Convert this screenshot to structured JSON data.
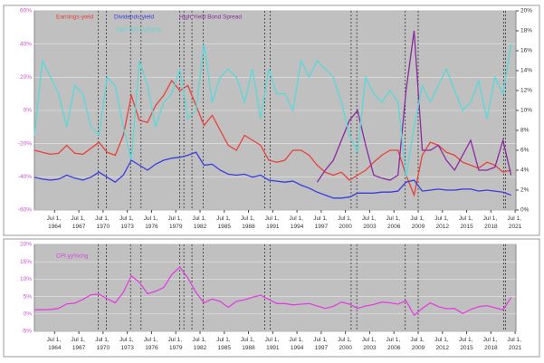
{
  "chart_data": [
    {
      "type": "line",
      "x": [
        1962,
        1963,
        1964,
        1965,
        1966,
        1967,
        1968,
        1969,
        1970,
        1971,
        1972,
        1973,
        1974,
        1975,
        1976,
        1977,
        1978,
        1979,
        1980,
        1981,
        1982,
        1983,
        1984,
        1985,
        1986,
        1987,
        1988,
        1989,
        1990,
        1991,
        1992,
        1993,
        1994,
        1995,
        1996,
        1997,
        1998,
        1999,
        2000,
        2001,
        2002,
        2003,
        2004,
        2005,
        2006,
        2007,
        2008,
        2009,
        2010,
        2011,
        2012,
        2013,
        2014,
        2015,
        2016,
        2017,
        2018,
        2019,
        2020,
        2021
      ],
      "series": [
        {
          "name": "Earnings-yield",
          "color": "#e8403a",
          "axis": "y2",
          "values": [
            6.0,
            5.8,
            5.6,
            5.7,
            6.5,
            5.7,
            5.6,
            6.2,
            6.8,
            5.8,
            5.5,
            7.5,
            11.5,
            9.0,
            8.8,
            10.5,
            11.5,
            13.0,
            12.0,
            12.5,
            10.5,
            8.5,
            9.5,
            8.0,
            6.5,
            6.0,
            7.5,
            7.0,
            6.5,
            5.0,
            4.8,
            5.0,
            6.0,
            6.0,
            5.5,
            4.5,
            3.8,
            3.5,
            3.8,
            3.0,
            3.5,
            4.0,
            4.8,
            5.5,
            6.0,
            6.0,
            3.5,
            1.5,
            5.5,
            6.8,
            6.5,
            5.8,
            5.5,
            4.8,
            4.5,
            4.2,
            4.8,
            4.5,
            3.8,
            4.0
          ]
        },
        {
          "name": "Dividends-yield",
          "color": "#3a3ae0",
          "axis": "y2",
          "values": [
            3.3,
            3.1,
            3.0,
            3.1,
            3.5,
            3.2,
            3.0,
            3.3,
            3.8,
            3.3,
            2.8,
            3.5,
            5.0,
            4.5,
            4.0,
            4.6,
            5.0,
            5.2,
            5.3,
            5.5,
            5.8,
            4.5,
            4.6,
            4.0,
            3.6,
            3.5,
            3.6,
            3.3,
            3.5,
            3.0,
            2.9,
            2.8,
            2.9,
            2.5,
            2.2,
            1.8,
            1.5,
            1.2,
            1.2,
            1.3,
            1.7,
            1.7,
            1.7,
            1.8,
            1.8,
            1.9,
            2.8,
            3.0,
            1.9,
            2.0,
            2.1,
            2.0,
            2.0,
            2.1,
            2.1,
            1.9,
            2.0,
            1.9,
            1.8,
            1.5
          ]
        },
        {
          "name": "High Yield Bond Spread",
          "color": "#8a2aa0",
          "axis": "y2",
          "values": [
            null,
            null,
            null,
            null,
            null,
            null,
            null,
            null,
            null,
            null,
            null,
            null,
            null,
            null,
            null,
            null,
            null,
            null,
            null,
            null,
            null,
            null,
            null,
            null,
            null,
            null,
            null,
            null,
            null,
            null,
            null,
            null,
            null,
            null,
            null,
            2.8,
            4.0,
            5.0,
            7.0,
            9.0,
            10.0,
            6.5,
            3.5,
            3.2,
            3.0,
            3.5,
            12.0,
            18.0,
            6.0,
            6.0,
            6.5,
            5.0,
            4.0,
            5.5,
            7.0,
            4.0,
            4.0,
            4.3,
            7.0,
            3.5
          ]
        },
        {
          "name": "S&P 500 yy%chg",
          "color": "#5ad8d8",
          "values": [
            -15,
            30,
            20,
            10,
            -10,
            15,
            10,
            -10,
            -15,
            20,
            15,
            -10,
            -30,
            30,
            15,
            -10,
            5,
            10,
            25,
            -5,
            0,
            40,
            5,
            20,
            25,
            20,
            5,
            25,
            -5,
            25,
            10,
            10,
            0,
            30,
            20,
            30,
            25,
            20,
            5,
            -15,
            -25,
            20,
            10,
            5,
            12,
            5,
            -40,
            -10,
            15,
            5,
            15,
            25,
            12,
            0,
            5,
            18,
            -5,
            20,
            10,
            40
          ]
        }
      ],
      "xlim": [
        1962,
        2021.6
      ],
      "xticks": [
        {
          "value": 1964.5,
          "label": "Jul 1, 1964"
        },
        {
          "value": 1967.5,
          "label": "Jul 1, 1967"
        },
        {
          "value": 1970.5,
          "label": "Jul 1, 1970"
        },
        {
          "value": 1973.5,
          "label": "Jul 1, 1973"
        },
        {
          "value": 1976.5,
          "label": "Jul 1, 1976"
        },
        {
          "value": 1979.5,
          "label": "Jul 1, 1979"
        },
        {
          "value": 1982.5,
          "label": "Jul 1, 1982"
        },
        {
          "value": 1985.5,
          "label": "Jul 1, 1985"
        },
        {
          "value": 1988.5,
          "label": "Jul 1, 1988"
        },
        {
          "value": 1991.5,
          "label": "Jul 1, 1991"
        },
        {
          "value": 1994.5,
          "label": "Jul 1, 1994"
        },
        {
          "value": 1997.5,
          "label": "Jul 1, 1997"
        },
        {
          "value": 2000.5,
          "label": "Jul 1, 2000"
        },
        {
          "value": 2003.5,
          "label": "Jul 1, 2003"
        },
        {
          "value": 2006.5,
          "label": "Jul 1, 2006"
        },
        {
          "value": 2009.5,
          "label": "Jul 1, 2009"
        },
        {
          "value": 2012.5,
          "label": "Jul 1, 2012"
        },
        {
          "value": 2015.5,
          "label": "Jul 1, 2015"
        },
        {
          "value": 2018.5,
          "label": "Jul 1, 2018"
        },
        {
          "value": 2021.5,
          "label": "Jul 1, 2021"
        }
      ],
      "ylim": [
        -60,
        60
      ],
      "yticks": [
        {
          "value": 60,
          "label": "60%"
        },
        {
          "value": 40,
          "label": "40%"
        },
        {
          "value": 20,
          "label": "20%"
        },
        {
          "value": 0,
          "label": "0%"
        },
        {
          "value": -20,
          "label": "-20%"
        },
        {
          "value": -40,
          "label": "-40%"
        },
        {
          "value": -60,
          "label": "-60%"
        }
      ],
      "y2lim": [
        0,
        20
      ],
      "y2ticks": [
        {
          "value": 20,
          "label": "20%"
        },
        {
          "value": 18,
          "label": "18%"
        },
        {
          "value": 16,
          "label": "16%"
        },
        {
          "value": 14,
          "label": "14%"
        },
        {
          "value": 12,
          "label": "12%"
        },
        {
          "value": 10,
          "label": "10%"
        },
        {
          "value": 8,
          "label": "8%"
        },
        {
          "value": 6,
          "label": "6%"
        },
        {
          "value": 4,
          "label": "4%"
        },
        {
          "value": 2,
          "label": "2%"
        },
        {
          "value": 0,
          "label": "0%"
        }
      ],
      "recessions": [
        [
          1969.9,
          1970.9
        ],
        [
          1973.9,
          1975.2
        ],
        [
          1980.0,
          1980.5
        ],
        [
          1981.5,
          1982.9
        ],
        [
          1990.5,
          1991.2
        ],
        [
          2001.2,
          2001.9
        ],
        [
          2007.9,
          2009.5
        ],
        [
          2020.1,
          2020.3
        ]
      ],
      "grid": true
    },
    {
      "type": "line",
      "x": [
        1962,
        1963,
        1964,
        1965,
        1966,
        1967,
        1968,
        1969,
        1970,
        1971,
        1972,
        1973,
        1974,
        1975,
        1976,
        1977,
        1978,
        1979,
        1980,
        1981,
        1982,
        1983,
        1984,
        1985,
        1986,
        1987,
        1988,
        1989,
        1990,
        1991,
        1992,
        1993,
        1994,
        1995,
        1996,
        1997,
        1998,
        1999,
        2000,
        2001,
        2002,
        2003,
        2004,
        2005,
        2006,
        2007,
        2008,
        2009,
        2010,
        2011,
        2012,
        2013,
        2014,
        2015,
        2016,
        2017,
        2018,
        2019,
        2020,
        2021
      ],
      "series": [
        {
          "name": "CPI yy%chg",
          "color": "#e040e0",
          "values": [
            1.2,
            1.2,
            1.3,
            1.6,
            2.9,
            3.1,
            4.2,
            5.5,
            5.7,
            4.4,
            3.2,
            6.2,
            11.0,
            9.1,
            5.8,
            6.5,
            7.6,
            11.3,
            13.5,
            10.3,
            6.2,
            3.2,
            4.3,
            3.6,
            1.9,
            3.6,
            4.1,
            4.8,
            5.4,
            4.2,
            3.0,
            3.0,
            2.6,
            2.8,
            3.0,
            2.3,
            1.6,
            2.2,
            3.4,
            2.8,
            1.6,
            2.3,
            2.7,
            3.4,
            3.2,
            2.8,
            3.8,
            -0.4,
            1.6,
            3.2,
            2.1,
            1.5,
            1.6,
            0.1,
            1.3,
            2.1,
            2.4,
            1.8,
            1.2,
            4.7
          ]
        }
      ],
      "xlim": [
        1962,
        2021.6
      ],
      "xticks": [
        {
          "value": 1964.5,
          "label": "Jul 1, 1964"
        },
        {
          "value": 1967.5,
          "label": "Jul 1, 1967"
        },
        {
          "value": 1970.5,
          "label": "Jul 1, 1970"
        },
        {
          "value": 1973.5,
          "label": "Jul 1, 1973"
        },
        {
          "value": 1976.5,
          "label": "Jul 1, 1976"
        },
        {
          "value": 1979.5,
          "label": "Jul 1, 1979"
        },
        {
          "value": 1982.5,
          "label": "Jul 1, 1982"
        },
        {
          "value": 1985.5,
          "label": "Jul 1, 1985"
        },
        {
          "value": 1988.5,
          "label": "Jul 1, 1988"
        },
        {
          "value": 1991.5,
          "label": "Jul 1, 1991"
        },
        {
          "value": 1994.5,
          "label": "Jul 1, 1994"
        },
        {
          "value": 1997.5,
          "label": "Jul 1, 1997"
        },
        {
          "value": 2000.5,
          "label": "Jul 1, 2000"
        },
        {
          "value": 2003.5,
          "label": "Jul 1, 2003"
        },
        {
          "value": 2006.5,
          "label": "Jul 1, 2006"
        },
        {
          "value": 2009.5,
          "label": "Jul 1, 2009"
        },
        {
          "value": 2012.5,
          "label": "Jul 1, 2012"
        },
        {
          "value": 2015.5,
          "label": "Jul 1, 2015"
        },
        {
          "value": 2018.5,
          "label": "Jul 1, 2018"
        },
        {
          "value": 2021.5,
          "label": "Jul 1, 2021"
        }
      ],
      "ylim": [
        -5,
        20
      ],
      "yticks": [
        {
          "value": 20,
          "label": "20%"
        },
        {
          "value": 15,
          "label": "15%"
        },
        {
          "value": 10,
          "label": "10%"
        },
        {
          "value": 5,
          "label": "5%"
        },
        {
          "value": 0,
          "label": "0%"
        },
        {
          "value": -5,
          "label": "-5%"
        }
      ],
      "recessions": [
        [
          1969.9,
          1970.9
        ],
        [
          1973.9,
          1975.2
        ],
        [
          1980.0,
          1980.5
        ],
        [
          1981.5,
          1982.9
        ],
        [
          1990.5,
          1991.2
        ],
        [
          2001.2,
          2001.9
        ],
        [
          2007.9,
          2009.5
        ],
        [
          2020.1,
          2020.3
        ]
      ],
      "grid": true
    }
  ]
}
